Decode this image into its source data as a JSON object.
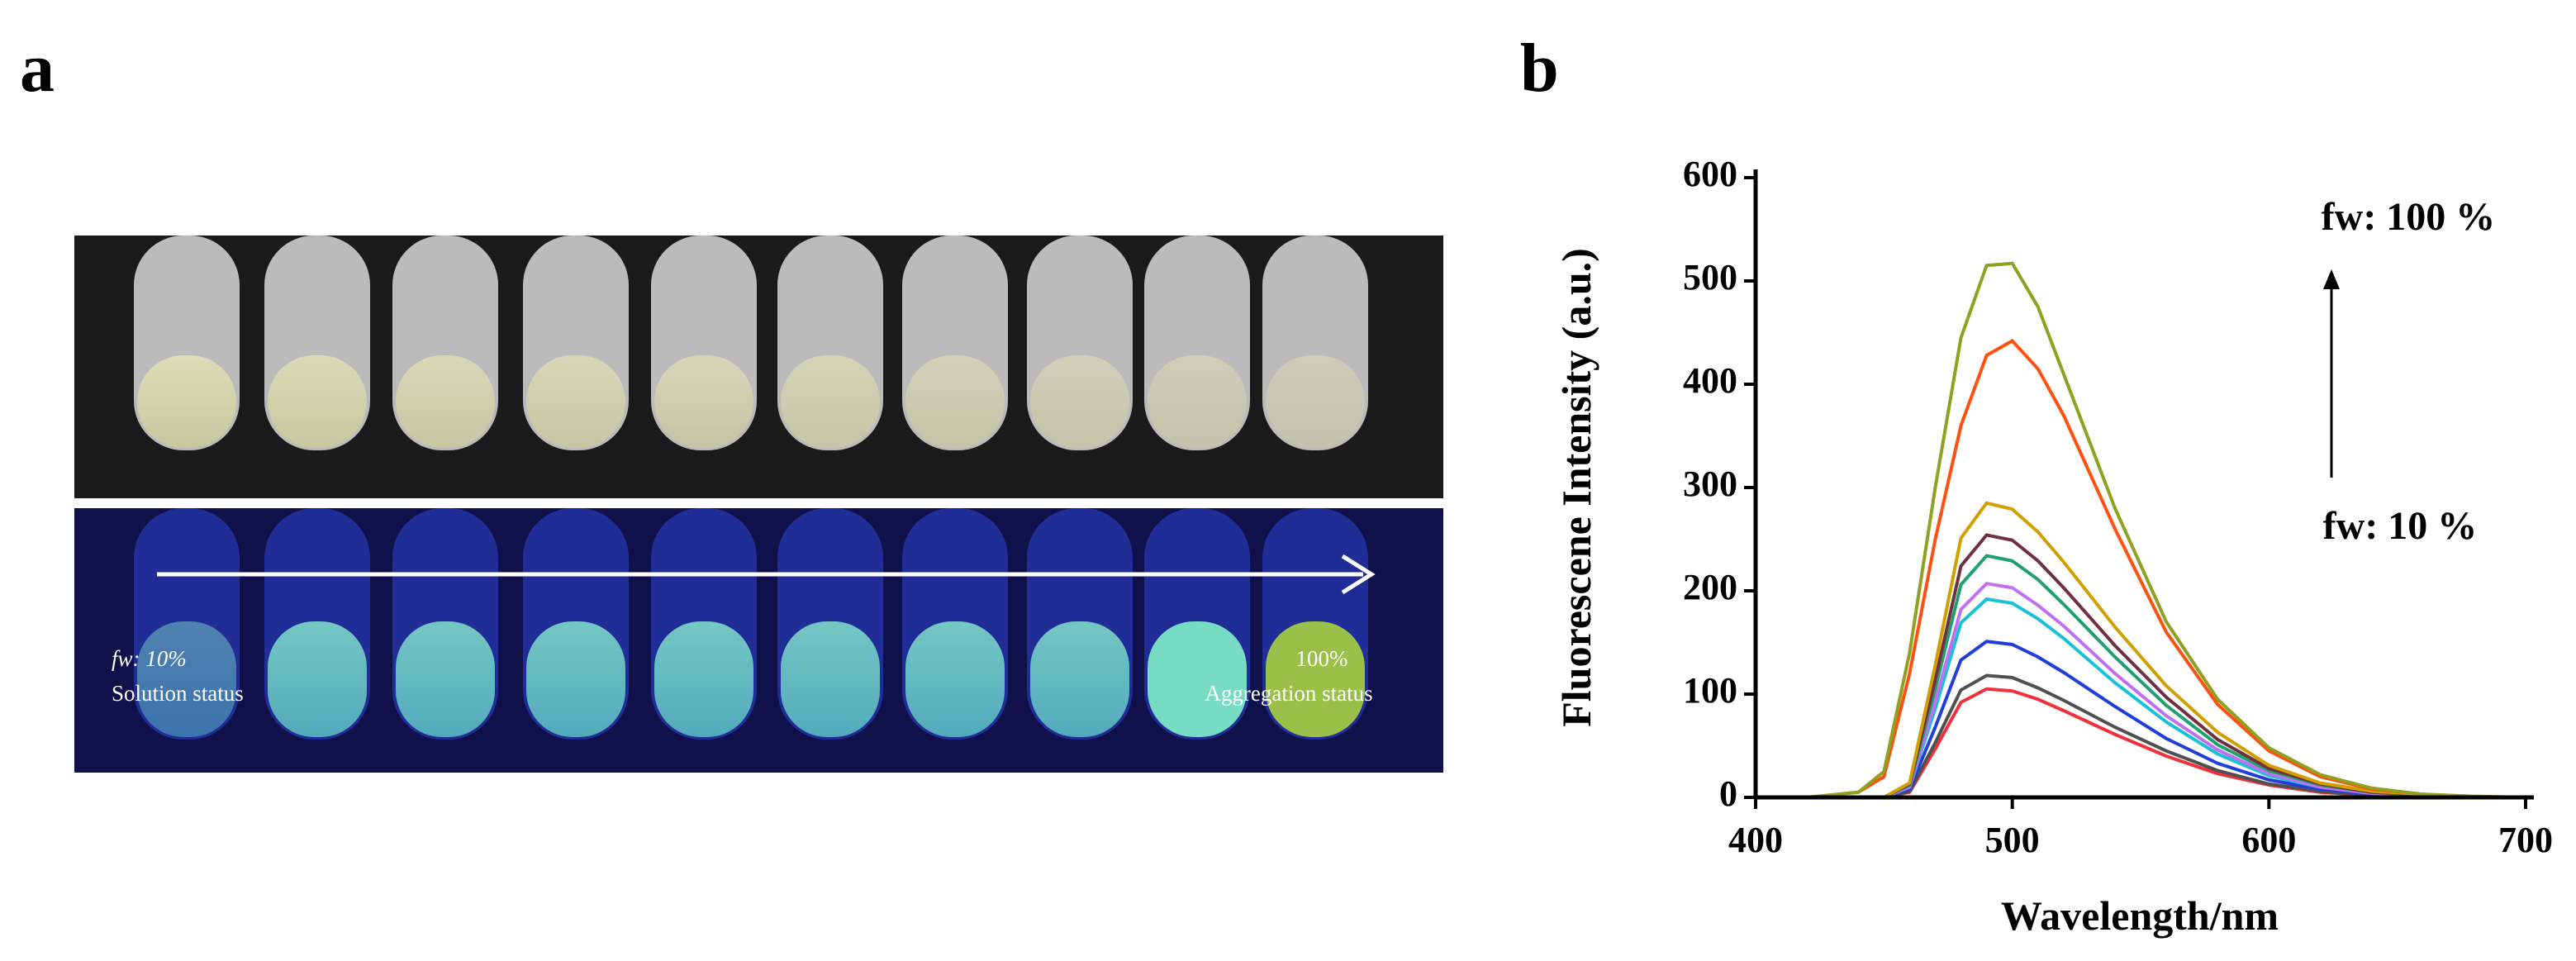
{
  "panel_a": {
    "label": "a",
    "start_label": "fw: 10%",
    "start_status": "Solution status",
    "end_label": "100%",
    "end_status": "Aggregation status"
  },
  "chart_data": {
    "type": "line",
    "panel_label": "b",
    "x_label": "Wavelength/nm",
    "y_label": "Fluorescene Intensity (a.u.)",
    "annotations": [
      "fw: 100 %",
      "fw: 10 %"
    ],
    "x": [
      400,
      420,
      440,
      450,
      460,
      470,
      480,
      490,
      500,
      510,
      520,
      540,
      560,
      580,
      600,
      620,
      640,
      660,
      680,
      700
    ],
    "series": [
      {
        "color": "#f0303a",
        "values": [
          0,
          0,
          0,
          0,
          5,
          47,
          92,
          105,
          103,
          95,
          84,
          61,
          40,
          23,
          12,
          5,
          2,
          1,
          0,
          0
        ]
      },
      {
        "color": "#505050",
        "values": [
          0,
          0,
          0,
          0,
          6,
          53,
          104,
          118,
          116,
          106,
          94,
          68,
          45,
          26,
          13,
          6,
          2,
          1,
          0,
          0
        ]
      },
      {
        "color": "#1f3fd8",
        "values": [
          0,
          0,
          0,
          0,
          8,
          68,
          133,
          151,
          148,
          136,
          121,
          88,
          57,
          33,
          17,
          8,
          3,
          2,
          0,
          0
        ]
      },
      {
        "color": "#18c0d8",
        "values": [
          0,
          0,
          0,
          0,
          10,
          86,
          169,
          192,
          188,
          173,
          154,
          111,
          73,
          42,
          21,
          10,
          4,
          2,
          0,
          0
        ]
      },
      {
        "color": "#c070f0",
        "values": [
          0,
          0,
          0,
          0,
          10,
          93,
          182,
          207,
          203,
          186,
          166,
          120,
          79,
          46,
          23,
          10,
          4,
          2,
          0,
          0
        ]
      },
      {
        "color": "#20a070",
        "values": [
          0,
          0,
          0,
          0,
          12,
          105,
          206,
          234,
          229,
          211,
          187,
          136,
          89,
          51,
          26,
          12,
          5,
          2,
          0,
          0
        ]
      },
      {
        "color": "#703040",
        "values": [
          0,
          0,
          0,
          0,
          13,
          114,
          224,
          254,
          249,
          229,
          203,
          147,
          97,
          56,
          28,
          13,
          5,
          3,
          0,
          0
        ]
      },
      {
        "color": "#d0a000",
        "values": [
          0,
          0,
          0,
          0,
          14,
          128,
          251,
          285,
          279,
          257,
          228,
          165,
          108,
          63,
          31,
          14,
          6,
          3,
          0,
          0
        ]
      },
      {
        "color": "#ff5010",
        "values": [
          0,
          0,
          5,
          20,
          120,
          250,
          360,
          428,
          442,
          415,
          370,
          260,
          160,
          90,
          45,
          20,
          8,
          3,
          1,
          0
        ]
      },
      {
        "color": "#90a020",
        "values": [
          0,
          0,
          5,
          25,
          140,
          300,
          445,
          515,
          517,
          475,
          410,
          280,
          170,
          95,
          48,
          22,
          9,
          3,
          1,
          0
        ]
      }
    ],
    "xlim": [
      400,
      700
    ],
    "ylim": [
      0,
      600
    ],
    "xticks": [
      400,
      500,
      600,
      700
    ],
    "yticks": [
      0,
      100,
      200,
      300,
      400,
      500,
      600
    ]
  }
}
